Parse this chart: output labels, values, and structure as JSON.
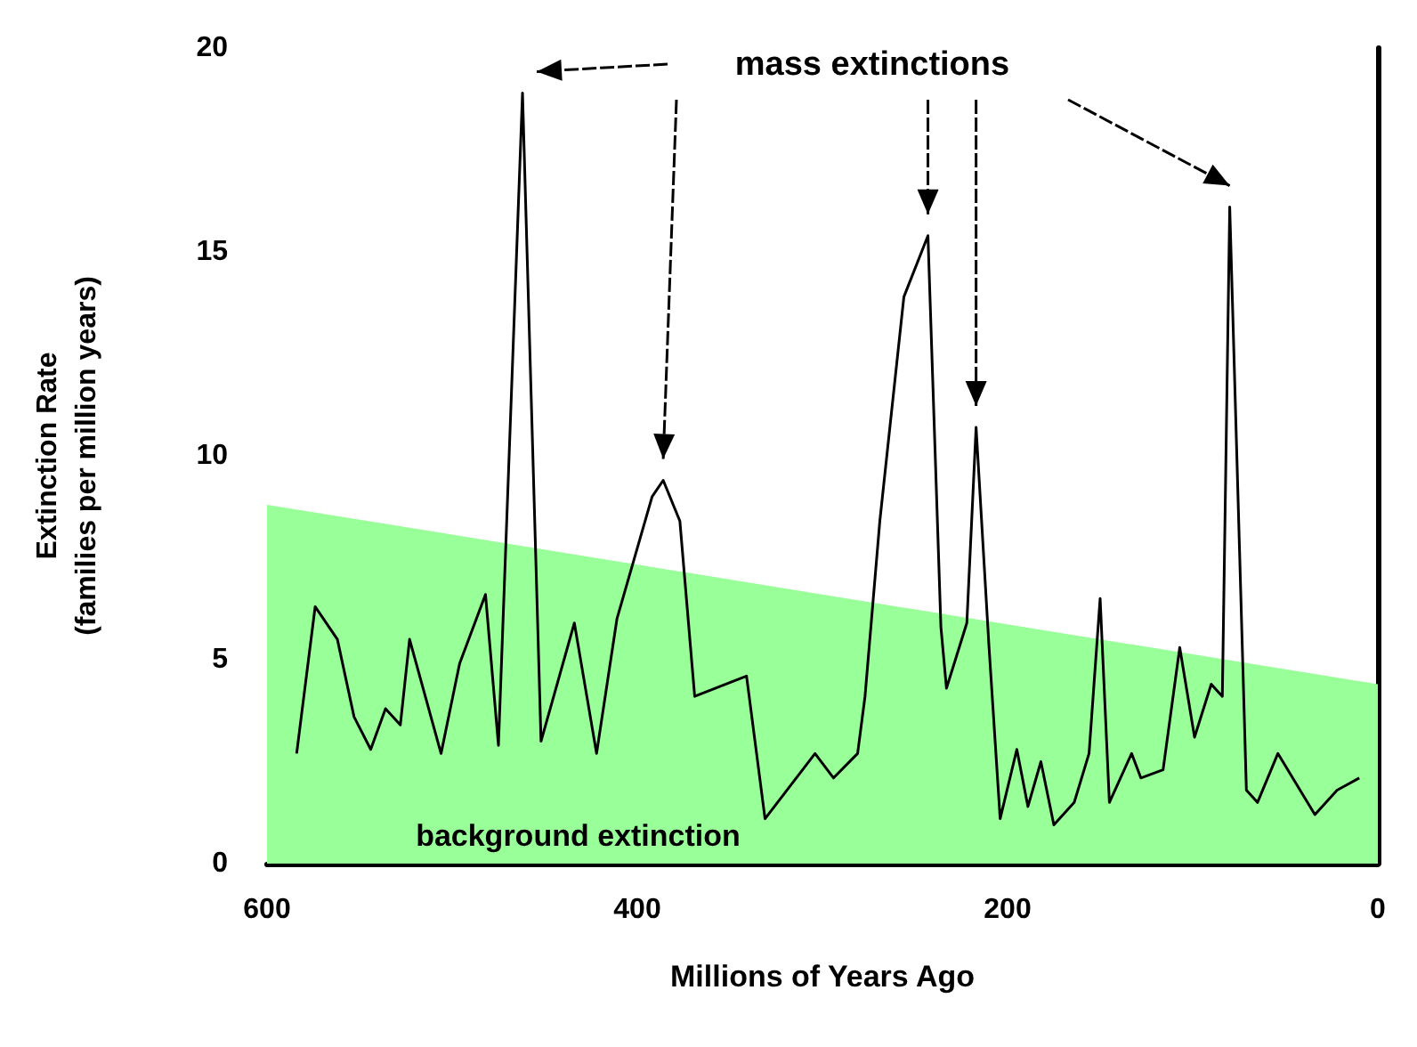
{
  "chart_data": {
    "type": "line",
    "xlabel": "Millions of Years Ago",
    "ylabel": "Extinction Rate\n(families per million years)",
    "annotations": [
      "mass extinctions"
    ],
    "xlim": [
      600,
      0
    ],
    "xticks": [
      600,
      400,
      200,
      0
    ],
    "ylim": [
      0,
      20
    ],
    "yticks": [
      0,
      5,
      10,
      15,
      20
    ],
    "grid": false,
    "series": [
      {
        "type": "area",
        "name": "background extinction",
        "color": "#99ff99",
        "x": [
          600,
          0
        ],
        "values": [
          8.8,
          4.4
        ]
      },
      {
        "color": "#000000",
        "x": [
          584,
          574,
          562,
          553,
          544,
          536,
          528,
          523,
          506,
          496,
          482,
          475,
          462,
          452,
          434,
          422,
          411,
          392,
          386,
          377,
          369,
          341,
          331,
          304,
          294,
          281,
          277,
          269,
          256,
          243,
          236,
          233,
          222,
          217,
          210,
          204,
          195,
          189,
          182,
          175,
          164,
          156,
          150,
          145,
          133,
          128,
          116,
          107,
          99,
          90,
          84,
          80,
          71,
          65,
          54,
          34,
          22,
          10
        ],
        "values": [
          2.7,
          6.3,
          5.5,
          3.6,
          2.8,
          3.8,
          3.4,
          5.5,
          2.7,
          4.9,
          6.6,
          2.9,
          18.9,
          3.0,
          5.9,
          2.7,
          6.0,
          9.0,
          9.4,
          8.4,
          4.1,
          4.6,
          1.1,
          2.7,
          2.1,
          2.7,
          4.1,
          8.4,
          13.9,
          15.4,
          5.8,
          4.3,
          5.9,
          10.7,
          5.3,
          1.1,
          2.8,
          1.4,
          2.5,
          0.95,
          1.5,
          2.7,
          6.5,
          1.5,
          2.7,
          2.1,
          2.3,
          5.3,
          3.1,
          4.4,
          4.1,
          16.1,
          1.8,
          1.5,
          2.7,
          1.2,
          1.8,
          2.1
        ]
      }
    ]
  }
}
